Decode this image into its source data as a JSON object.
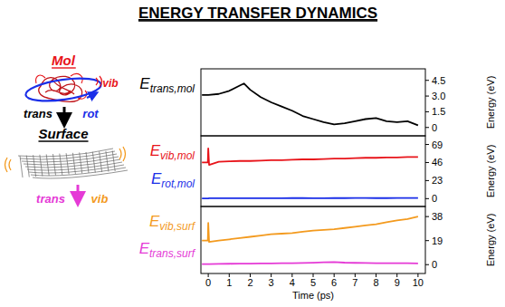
{
  "title": "ENERGY TRANSFER DYNAMICS",
  "diagram": {
    "mol": {
      "label": "Mol",
      "vib": "vib",
      "trans": "trans",
      "rot": "rot"
    },
    "surface": {
      "label": "Surface",
      "trans": "trans",
      "vib": "vib"
    }
  },
  "chart_data": [
    {
      "type": "line",
      "xlim": [
        -0.35,
        10.35
      ],
      "ylim": [
        -0.8,
        5.6
      ],
      "yticks": [
        0,
        1.5,
        {
          "value": 3,
          "label": "3.0"
        },
        4.5
      ],
      "ylabel": "Energy (eV)",
      "tick_labels": "y",
      "x": [
        -0.3,
        0,
        0.5,
        1,
        1.5,
        1.7,
        2,
        2.5,
        3,
        3.5,
        4,
        4.5,
        5,
        5.5,
        6,
        6.5,
        7,
        7.5,
        8,
        8.5,
        9,
        9.5,
        10
      ],
      "series": [
        {
          "name": "Etrans,mol",
          "color": "#000000",
          "values": [
            3.1,
            3.1,
            3.2,
            3.5,
            4.0,
            4.2,
            3.6,
            2.9,
            2.4,
            2.0,
            1.6,
            1.1,
            0.8,
            0.5,
            0.3,
            0.4,
            0.6,
            0.8,
            0.9,
            0.6,
            0.5,
            0.6,
            0.2
          ]
        }
      ]
    },
    {
      "type": "line",
      "xlim": [
        -0.35,
        10.35
      ],
      "ylim": [
        -10,
        80
      ],
      "yticks": [
        0,
        23,
        46,
        69
      ],
      "ylabel": "Energy (eV)",
      "tick_labels": "y",
      "x": [
        -0.3,
        -0.02,
        0,
        0.04,
        0.5,
        1,
        1.5,
        2,
        2.5,
        3,
        3.5,
        4,
        4.5,
        5,
        5.5,
        6,
        6.5,
        7,
        7.5,
        8,
        8.5,
        9,
        9.5,
        10
      ],
      "series": [
        {
          "name": "Evib,mol",
          "color": "#e8141a",
          "values": [
            46,
            46,
            64,
            43,
            47,
            47.5,
            48,
            48,
            48.5,
            49,
            49,
            49.5,
            50,
            50,
            50.5,
            51,
            51,
            51.5,
            52,
            52,
            52.5,
            52.5,
            53,
            53
          ]
        },
        {
          "name": "Erot,mol",
          "color": "#1a2ee8",
          "values": [
            0.3,
            0.3,
            0.3,
            0.5,
            0.5,
            0.6,
            0.6,
            0.5,
            0.5,
            0.6,
            0.6,
            0.7,
            0.7,
            0.6,
            0.6,
            0.7,
            0.7,
            0.8,
            0.8,
            0.7,
            0.7,
            0.8,
            0.8,
            0.8
          ]
        }
      ]
    },
    {
      "type": "line",
      "xlim": [
        -0.35,
        10.35
      ],
      "ylim": [
        -7,
        46
      ],
      "yticks": [
        0,
        19,
        38
      ],
      "xticks": [
        0,
        1,
        2,
        3,
        4,
        5,
        6,
        7,
        8,
        9,
        10
      ],
      "xlabel": "Time (ps)",
      "ylabel": "Energy (eV)",
      "x": [
        -0.3,
        -0.02,
        0,
        0.04,
        0.5,
        1,
        1.5,
        2,
        2.5,
        3,
        3.5,
        4,
        4.5,
        5,
        5.5,
        6,
        6.5,
        7,
        7.5,
        8,
        8.5,
        9,
        9.5,
        10
      ],
      "series": [
        {
          "name": "Evib,surf",
          "color": "#f39a1e",
          "values": [
            19,
            19,
            33,
            18,
            19,
            20,
            21,
            22,
            23,
            24,
            24.5,
            25,
            26,
            27,
            27.5,
            28,
            29,
            30,
            31,
            32,
            33.5,
            35,
            36,
            38
          ]
        },
        {
          "name": "Etrans,surf",
          "color": "#e53ad6",
          "values": [
            0.5,
            0.5,
            0.5,
            0.5,
            0.6,
            0.7,
            0.8,
            0.8,
            0.9,
            1.0,
            1.1,
            1.2,
            1.3,
            1.5,
            1.8,
            2.0,
            1.6,
            1.4,
            1.3,
            1.2,
            1.2,
            1.1,
            1.1,
            1.0
          ]
        }
      ]
    }
  ]
}
